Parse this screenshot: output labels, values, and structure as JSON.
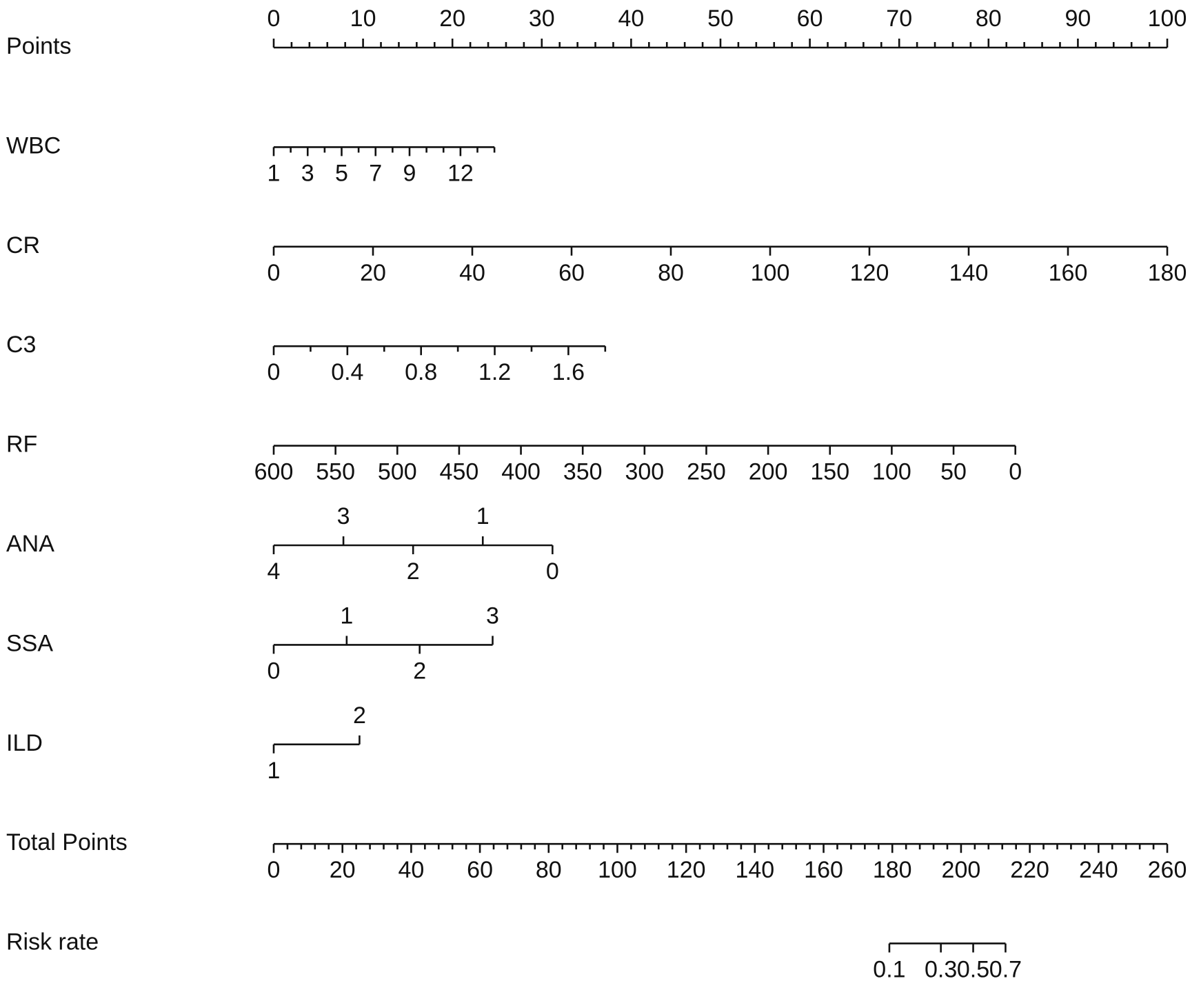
{
  "chart_data": {
    "type": "nomogram",
    "color": "#000000",
    "rows": [
      {
        "name": "Points",
        "xlim": [
          0,
          100
        ],
        "points": [
          0,
          100
        ],
        "label_side": "above",
        "ticks": [
          0,
          10,
          20,
          30,
          40,
          50,
          60,
          70,
          80,
          90,
          100
        ],
        "minor_ticks": [
          2,
          4,
          6,
          8,
          12,
          14,
          16,
          18,
          22,
          24,
          26,
          28,
          32,
          34,
          36,
          38,
          42,
          44,
          46,
          48,
          52,
          54,
          56,
          58,
          62,
          64,
          66,
          68,
          72,
          74,
          76,
          78,
          82,
          84,
          86,
          88,
          92,
          94,
          96,
          98
        ]
      },
      {
        "name": "WBC",
        "xlim": [
          1,
          14
        ],
        "points": [
          0,
          24.7
        ],
        "label_side": "below",
        "ticks": [
          1,
          3,
          5,
          7,
          9,
          12
        ],
        "minor_ticks": [
          2,
          4,
          6,
          8,
          10,
          11,
          13,
          14
        ]
      },
      {
        "name": "CR",
        "xlim": [
          0,
          180
        ],
        "points": [
          0,
          100
        ],
        "label_side": "below",
        "ticks": [
          0,
          20,
          40,
          60,
          80,
          100,
          120,
          140,
          160,
          180
        ]
      },
      {
        "name": "C3",
        "xlim": [
          0,
          1.8
        ],
        "points": [
          0,
          37.1
        ],
        "label_side": "below",
        "ticks": [
          0,
          0.4,
          0.8,
          1.2,
          1.6
        ],
        "minor_ticks": [
          0.2,
          0.6,
          1,
          1.4,
          1.8
        ]
      },
      {
        "name": "RF",
        "xlim": [
          600,
          0
        ],
        "points": [
          0,
          83
        ],
        "label_side": "below",
        "ticks": [
          600,
          550,
          500,
          450,
          400,
          350,
          300,
          250,
          200,
          150,
          100,
          50,
          0
        ]
      },
      {
        "name": "ANA",
        "xlim": [
          4,
          0
        ],
        "points": [
          0,
          31.2
        ],
        "label_side": "below",
        "ticks": [
          4,
          2,
          0
        ],
        "ticks_above": [
          3,
          1
        ]
      },
      {
        "name": "SSA",
        "xlim": [
          0,
          3
        ],
        "points": [
          0,
          24.5
        ],
        "label_side": "below",
        "ticks": [
          0,
          2
        ],
        "ticks_above": [
          1,
          3
        ]
      },
      {
        "name": "ILD",
        "xlim": [
          1,
          2
        ],
        "points": [
          0,
          9.6
        ],
        "label_side": "below",
        "ticks": [
          1
        ],
        "ticks_above": [
          2
        ]
      },
      {
        "name": "Total Points",
        "xlim": [
          0,
          260
        ],
        "points": [
          0,
          100
        ],
        "label_side": "below",
        "ticks": [
          0,
          20,
          40,
          60,
          80,
          100,
          120,
          140,
          160,
          180,
          200,
          220,
          240,
          260
        ],
        "minor_ticks": [
          4,
          8,
          12,
          16,
          24,
          28,
          32,
          36,
          44,
          48,
          52,
          56,
          64,
          68,
          72,
          76,
          84,
          88,
          92,
          96,
          104,
          108,
          112,
          116,
          124,
          128,
          132,
          136,
          144,
          148,
          152,
          156,
          164,
          168,
          172,
          176,
          184,
          188,
          192,
          196,
          204,
          208,
          212,
          216,
          224,
          228,
          232,
          236,
          244,
          248,
          252,
          256
        ]
      },
      {
        "name": "Risk rate",
        "xlim": [
          0.1,
          0.7
        ],
        "points": [
          68.9,
          81.9
        ],
        "scale": "logit",
        "label_side": "below",
        "ticks": [
          0.1,
          0.3,
          0.5,
          0.7
        ]
      }
    ]
  }
}
